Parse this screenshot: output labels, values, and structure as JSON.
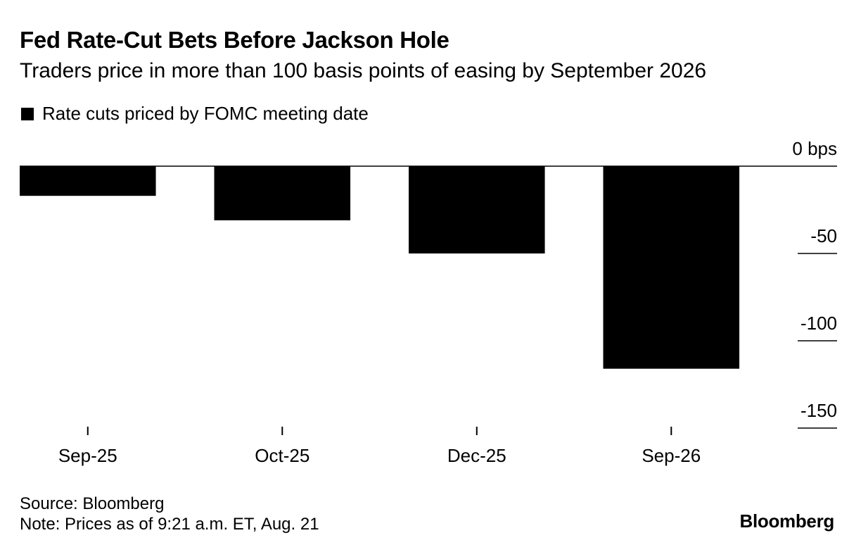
{
  "header": {
    "title": "Fed Rate-Cut Bets Before Jackson Hole",
    "subtitle": "Traders price in more than 100 basis points of easing by September 2026"
  },
  "legend": {
    "label": "Rate cuts priced by FOMC meeting date",
    "color": "#000000"
  },
  "footer": {
    "source": "Source: Bloomberg",
    "note": "Note: Prices as of 9:21 a.m. ET, Aug. 21",
    "brand": "Bloomberg"
  },
  "chart_data": {
    "type": "bar",
    "title": "Fed Rate-Cut Bets Before Jackson Hole",
    "subtitle": "Traders price in more than 100 basis points of easing by September 2026",
    "categories": [
      "Sep-25",
      "Oct-25",
      "Dec-25",
      "Sep-26"
    ],
    "series": [
      {
        "name": "Rate cuts priced by FOMC meeting date",
        "values": [
          -17,
          -31,
          -50,
          -116
        ],
        "color": "#000000"
      }
    ],
    "ylim": [
      -150,
      0
    ],
    "yticks": [
      0,
      -50,
      -100,
      -150
    ],
    "ytick_labels": [
      "0 bps",
      "-50",
      "-100",
      "-150"
    ],
    "xlabel": "",
    "ylabel": "",
    "axis_side": "right",
    "grid": false
  }
}
